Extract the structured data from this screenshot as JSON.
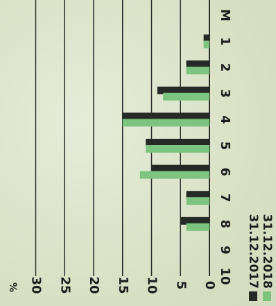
{
  "chart_data": {
    "type": "bar",
    "orientation": "horizontal",
    "categories": [
      "M",
      "1",
      "2",
      "3",
      "4",
      "5",
      "6",
      "7",
      "8",
      "9",
      "10"
    ],
    "series": [
      {
        "name": "31.12.2017",
        "color": "#262a26",
        "values": [
          0,
          1,
          4,
          9,
          15,
          11,
          10,
          4,
          5,
          0,
          0
        ]
      },
      {
        "name": "31.12.2018",
        "color": "#7cc47f",
        "values": [
          0,
          1,
          4,
          8,
          15,
          11,
          12,
          4,
          4,
          0,
          0
        ]
      }
    ],
    "unit": "%",
    "ticks": [
      "0",
      "5",
      "10",
      "15",
      "20",
      "25",
      "30"
    ],
    "xlim": [
      0,
      30
    ],
    "grid": true,
    "legend_position": "bottom-left"
  }
}
